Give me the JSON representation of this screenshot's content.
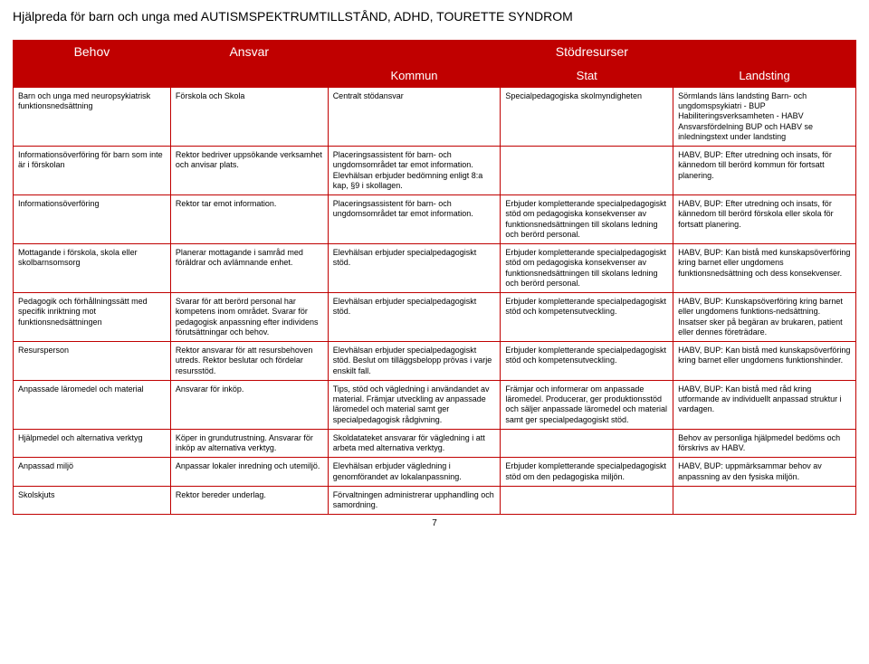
{
  "doc_title": "Hjälpreda för barn och unga med AUTISMSPEKTRUMTILLSTÅND, ADHD, TOURETTE SYNDROM",
  "colors": {
    "header_bg": "#c00000",
    "header_text": "#ffffff",
    "border": "#c00000",
    "body_text": "#000000",
    "page_bg": "#ffffff"
  },
  "typography": {
    "title_fontsize": 14,
    "header_fontsize": 14,
    "subheader_fontsize": 13,
    "cell_fontsize": 9,
    "font_family": "Arial"
  },
  "headers": {
    "behov": "Behov",
    "ansvar": "Ansvar",
    "stodresurser": "Stödresurser",
    "kommun1": "Kommun",
    "kommun2": "Kommun",
    "stat": "Stat",
    "landsting": "Landsting"
  },
  "rows": [
    {
      "c0": "Barn och unga med neuropsykiatrisk funktionsnedsättning",
      "c1": "Förskola och Skola",
      "c2": "Centralt stödansvar",
      "c3": "Specialpedagogiska skolmyndigheten",
      "c4": "Sörmlands läns landsting\nBarn- och ungdomspsykiatri - BUP\nHabiliteringsverksamheten - HABV\nAnsvarsfördelning BUP och HABV se inledningstext under landsting"
    },
    {
      "c0": "Informationsöverföring för barn som inte är i förskolan",
      "c1": "Rektor bedriver uppsökande verksamhet och anvisar plats.",
      "c2": "Placeringsassistent för barn- och ungdomsområdet tar emot information. Elevhälsan erbjuder bedömning enligt 8:a kap, §9 i skollagen.",
      "c3": "",
      "c4": "HABV, BUP: Efter utredning och insats, för kännedom till berörd kommun för fortsatt planering."
    },
    {
      "c0": "Informationsöverföring",
      "c1": "Rektor tar emot information.",
      "c2": "Placeringsassistent för barn- och ungdomsområdet tar emot information.",
      "c3": "Erbjuder kompletterande specialpedagogiskt stöd om pedagogiska konsekvenser av funktionsnedsättningen till skolans ledning och berörd personal.",
      "c4": "HABV, BUP: Efter utredning och insats, för kännedom till berörd förskola eller skola för fortsatt planering."
    },
    {
      "c0": "Mottagande i förskola, skola eller skolbarnsomsorg",
      "c1": "Planerar mottagande i samråd med föräldrar och avlämnande enhet.",
      "c2": "Elevhälsan erbjuder specialpedagogiskt stöd.",
      "c3": "Erbjuder kompletterande specialpedagogiskt stöd om pedagogiska konsekvenser av funktionsnedsättningen till skolans ledning och berörd personal.",
      "c4": "HABV, BUP: Kan bistå med kunskapsöverföring kring barnet eller ungdomens funktionsnedsättning och dess konsekvenser."
    },
    {
      "c0": "Pedagogik och förhållningssätt med specifik inriktning mot funktionsnedsättningen",
      "c1": "Svarar för att berörd personal har kompetens inom området. Svarar för pedagogisk anpassning efter individens förutsättningar och behov.",
      "c2": "Elevhälsan erbjuder specialpedagogiskt stöd.",
      "c3": "Erbjuder kompletterande specialpedagogiskt stöd och kompetensutveckling.",
      "c4": "HABV, BUP: Kunskapsöverföring kring barnet eller ungdomens funktions-nedsättning. Insatser sker på begäran av brukaren, patient eller dennes företrädare."
    },
    {
      "c0": "Resursperson",
      "c1": "Rektor ansvarar för att resursbehoven utreds. Rektor beslutar och fördelar resursstöd.",
      "c2": "Elevhälsan erbjuder specialpedagogiskt stöd.\nBeslut om tilläggsbelopp prövas i varje enskilt fall.",
      "c3": "Erbjuder kompletterande specialpedagogiskt stöd och kompetensutveckling.",
      "c4": "HABV, BUP: Kan bistå med kunskapsöverföring kring barnet eller ungdomens funktionshinder."
    },
    {
      "c0": "Anpassade läromedel och material",
      "c1": "Ansvarar för inköp.",
      "c2": "Tips, stöd och vägledning i användandet av material. Främjar utveckling av anpassade läromedel och material samt ger specialpedagogisk rådgivning.",
      "c3": "Främjar och informerar om anpassade läromedel. Producerar, ger produktionsstöd och säljer anpassade läromedel och material samt ger specialpedagogiskt stöd.",
      "c4": "HABV, BUP: Kan bistå med råd kring utformande av individuellt anpassad struktur i vardagen."
    },
    {
      "c0": "Hjälpmedel och alternativa verktyg",
      "c1": "Köper in grundutrustning.\nAnsvarar för inköp av alternativa verktyg.",
      "c2": "Skoldatateket ansvarar för vägledning i att arbeta med alternativa verktyg.",
      "c3": "",
      "c4": "Behov av personliga hjälpmedel bedöms och förskrivs av HABV."
    },
    {
      "c0": "Anpassad miljö",
      "c1": "Anpassar lokaler inredning och utemiljö.",
      "c2": "Elevhälsan erbjuder vägledning i genomförandet av lokalanpassning.",
      "c3": "Erbjuder kompletterande specialpedagogiskt stöd om den pedagogiska miljön.",
      "c4": "HABV, BUP: uppmärksammar behov av anpassning av den fysiska miljön."
    },
    {
      "c0": "Skolskjuts",
      "c1": "Rektor bereder underlag.",
      "c2": "Förvaltningen administrerar upphandling och samordning.",
      "c3": "",
      "c4": ""
    }
  ],
  "page_number": "7"
}
